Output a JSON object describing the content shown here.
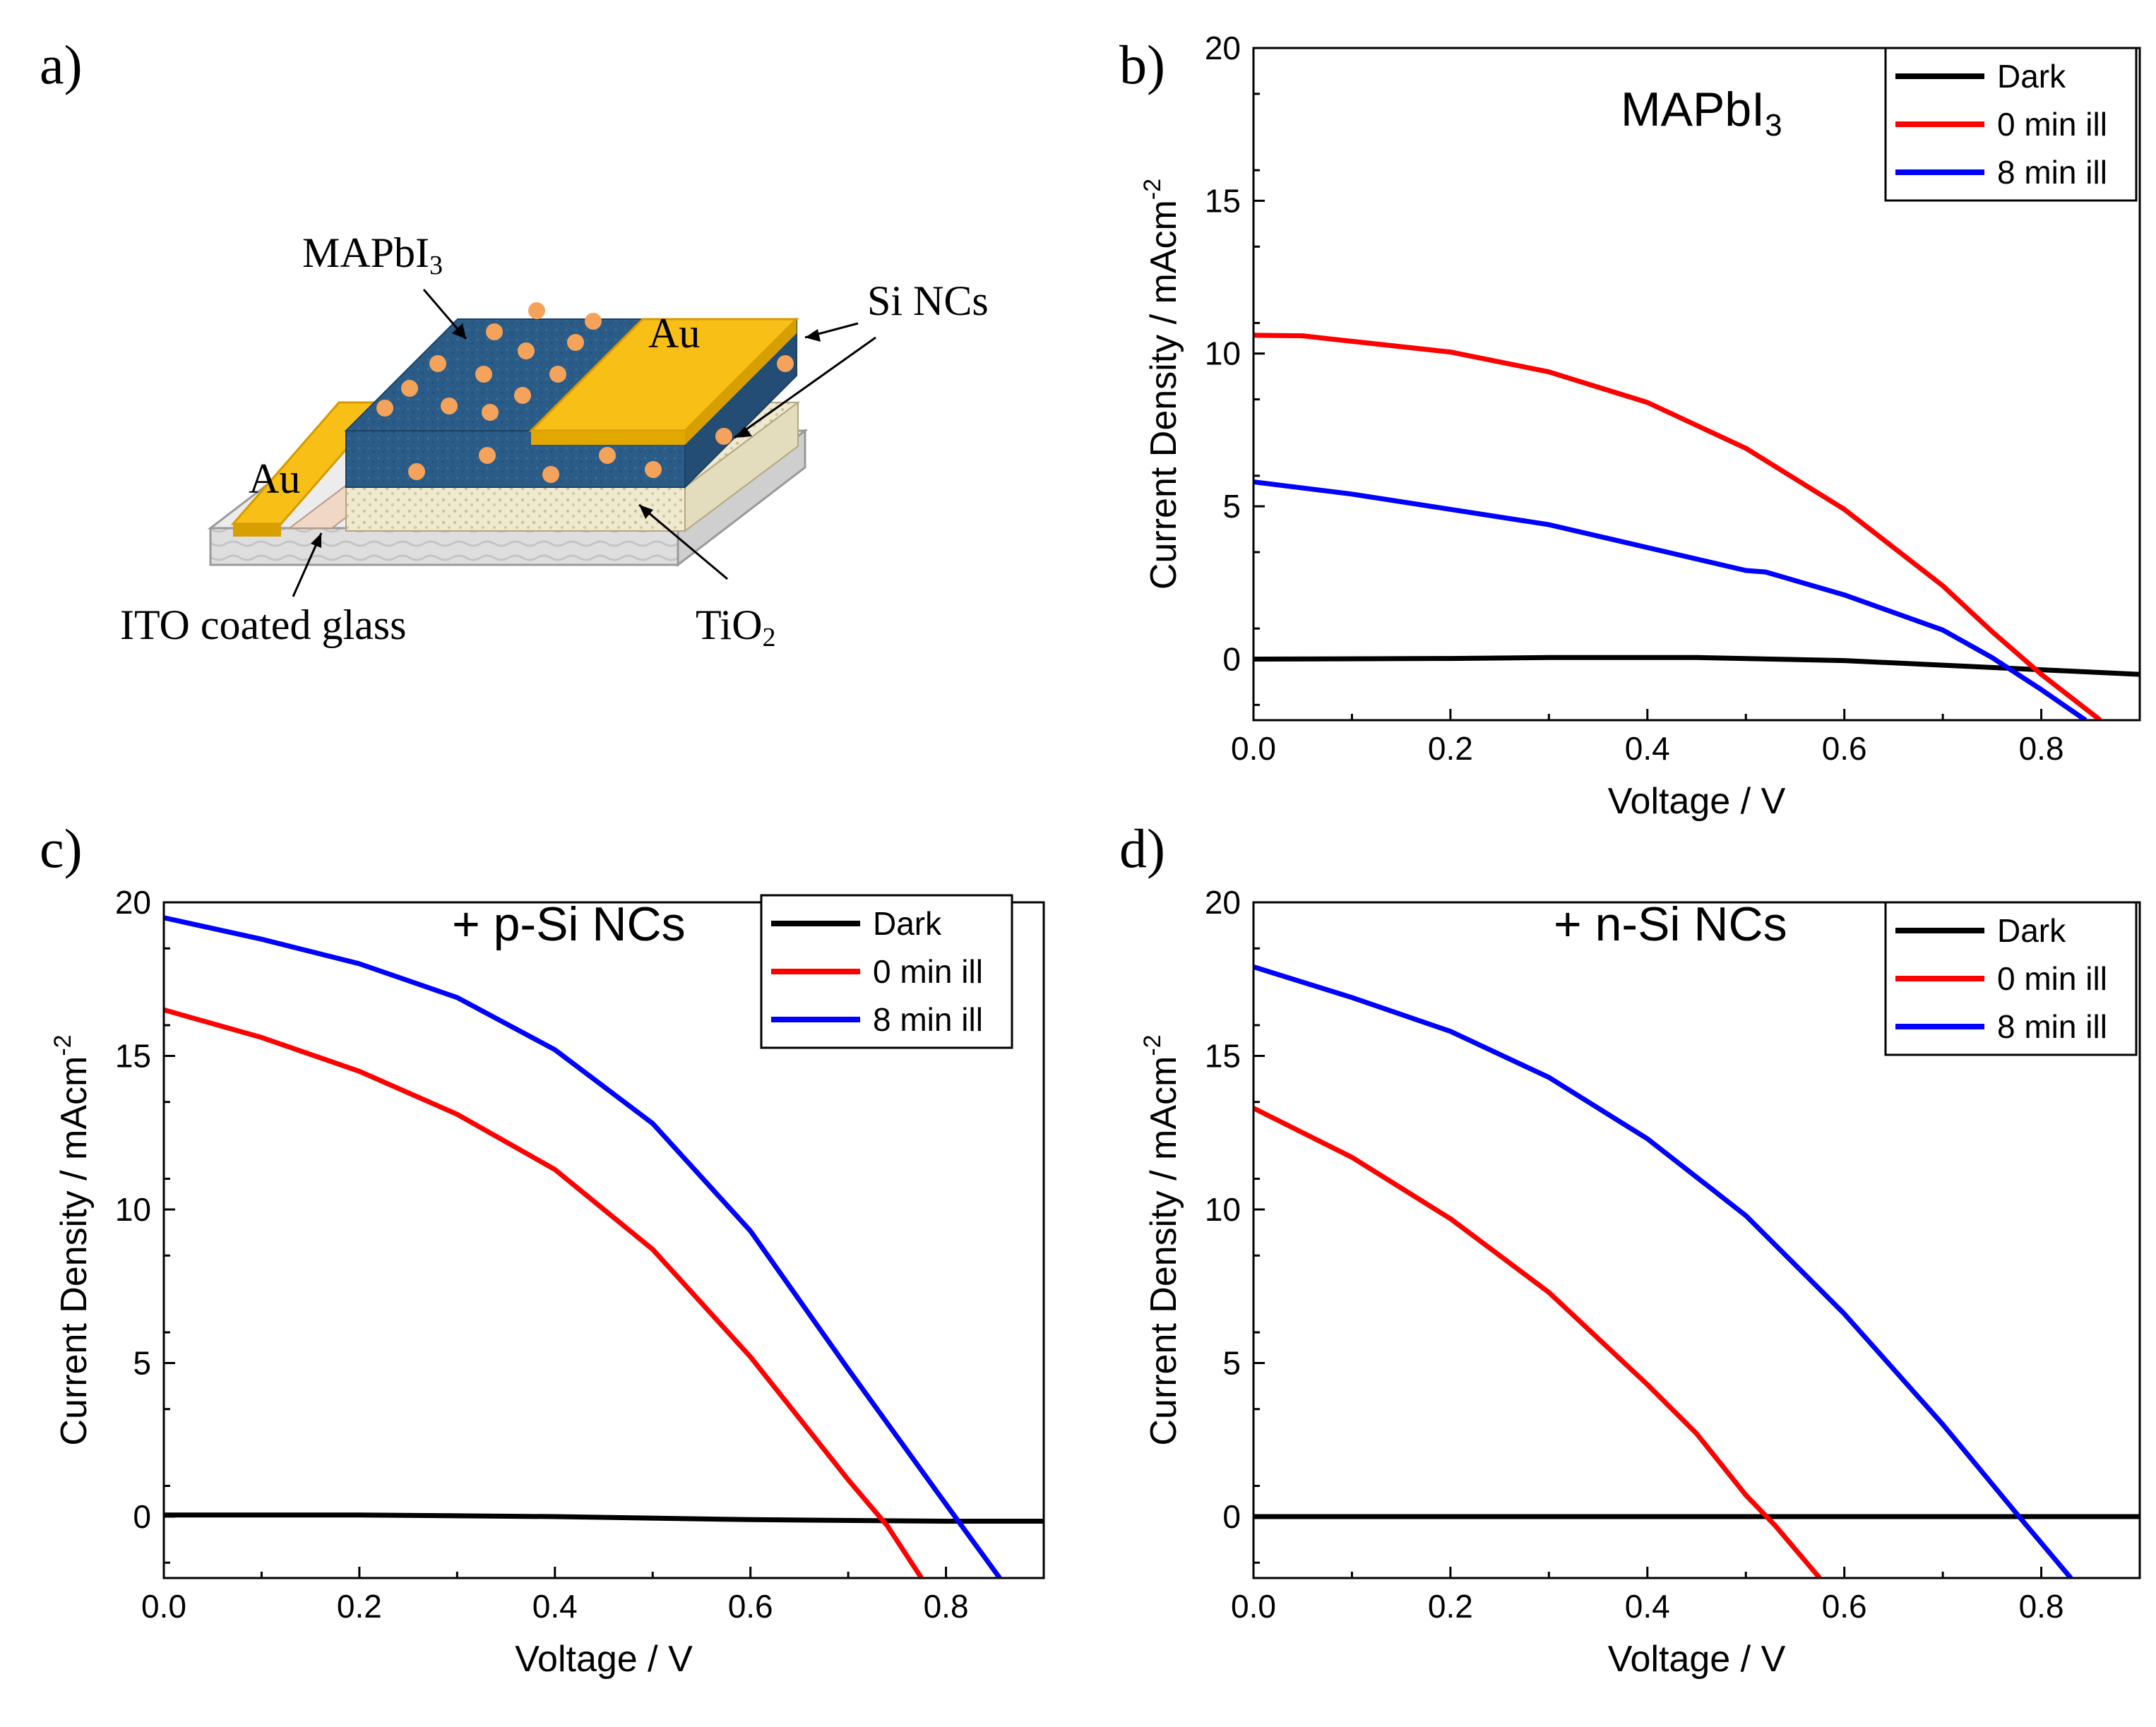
{
  "colors": {
    "dark": "#000000",
    "illum0": "#ff0000",
    "illum8": "#0000ff",
    "perovskite": "#2a5b86",
    "gold": "#f6b800",
    "nc": "#f5a25a"
  },
  "diagram": {
    "panel_letter": "a)",
    "labels": {
      "mapbi3": "MAPbI",
      "mapbi3_sub": "3",
      "au_top": "Au",
      "au_left": "Au",
      "si_ncs": "Si NCs",
      "ito": "ITO coated  glass",
      "tio2": "TiO",
      "tio2_sub": "2"
    }
  },
  "chart_data": [
    {
      "id": "b",
      "panel_letter": "b)",
      "type": "line",
      "title": "MAPbI",
      "title_sub": "3",
      "xlabel": "Voltage / V",
      "ylabel": "Current Density / mAcm",
      "ylabel_sup": "-2",
      "xlim": [
        0,
        0.9
      ],
      "ylim": [
        -2,
        20
      ],
      "xticks": [
        0.0,
        0.2,
        0.4,
        0.6,
        0.8
      ],
      "xtick_labels": [
        "0.0",
        "0.2",
        "0.4",
        "0.6",
        "0.8"
      ],
      "yticks": [
        0,
        5,
        10,
        15,
        20
      ],
      "ytick_labels": [
        "0",
        "5",
        "10",
        "15",
        "20"
      ],
      "legend": [
        "Dark",
        "0 min ill",
        "8 min ill"
      ],
      "series": [
        {
          "name": "Dark",
          "color": "#000000",
          "points": [
            [
              0,
              0
            ],
            [
              0.2,
              0.02
            ],
            [
              0.3,
              0.05
            ],
            [
              0.45,
              0.05
            ],
            [
              0.6,
              -0.05
            ],
            [
              0.7,
              -0.2
            ],
            [
              0.8,
              -0.35
            ],
            [
              0.9,
              -0.5
            ]
          ]
        },
        {
          "name": "0 min ill",
          "color": "#ff0000",
          "points": [
            [
              0,
              10.6
            ],
            [
              0.05,
              10.58
            ],
            [
              0.1,
              10.4
            ],
            [
              0.2,
              10.05
            ],
            [
              0.3,
              9.4
            ],
            [
              0.4,
              8.4
            ],
            [
              0.5,
              6.9
            ],
            [
              0.6,
              4.9
            ],
            [
              0.7,
              2.4
            ],
            [
              0.75,
              0.9
            ],
            [
              0.8,
              -0.5
            ],
            [
              0.86,
              -2.0
            ]
          ]
        },
        {
          "name": "8 min ill",
          "color": "#0000ff",
          "points": [
            [
              0,
              5.8
            ],
            [
              0.1,
              5.4
            ],
            [
              0.2,
              4.9
            ],
            [
              0.3,
              4.4
            ],
            [
              0.4,
              3.65
            ],
            [
              0.5,
              2.9
            ],
            [
              0.52,
              2.85
            ],
            [
              0.6,
              2.1
            ],
            [
              0.7,
              0.95
            ],
            [
              0.75,
              0.05
            ],
            [
              0.8,
              -1.0
            ],
            [
              0.845,
              -2.0
            ]
          ]
        }
      ]
    },
    {
      "id": "c",
      "panel_letter": "c)",
      "type": "line",
      "title": "+ p-Si NCs",
      "xlabel": "Voltage / V",
      "ylabel": "Current Density / mAcm",
      "ylabel_sup": "-2",
      "xlim": [
        0,
        0.9
      ],
      "ylim": [
        -2,
        20
      ],
      "xticks": [
        0.0,
        0.2,
        0.4,
        0.6,
        0.8
      ],
      "xtick_labels": [
        "0.0",
        "0.2",
        "0.4",
        "0.6",
        "0.8"
      ],
      "yticks": [
        0,
        5,
        10,
        15,
        20
      ],
      "ytick_labels": [
        "0",
        "5",
        "10",
        "15",
        "20"
      ],
      "legend": [
        "Dark",
        "0 min ill",
        "8 min ill"
      ],
      "series": [
        {
          "name": "Dark",
          "color": "#000000",
          "points": [
            [
              0,
              0.05
            ],
            [
              0.2,
              0.05
            ],
            [
              0.4,
              0.0
            ],
            [
              0.6,
              -0.1
            ],
            [
              0.8,
              -0.15
            ],
            [
              0.9,
              -0.15
            ]
          ]
        },
        {
          "name": "0 min ill",
          "color": "#ff0000",
          "points": [
            [
              0,
              16.5
            ],
            [
              0.1,
              15.6
            ],
            [
              0.2,
              14.5
            ],
            [
              0.3,
              13.1
            ],
            [
              0.4,
              11.3
            ],
            [
              0.5,
              8.7
            ],
            [
              0.6,
              5.2
            ],
            [
              0.7,
              1.2
            ],
            [
              0.74,
              -0.3
            ],
            [
              0.775,
              -2.0
            ]
          ]
        },
        {
          "name": "8 min ill",
          "color": "#0000ff",
          "points": [
            [
              0,
              19.5
            ],
            [
              0.1,
              18.8
            ],
            [
              0.2,
              18.0
            ],
            [
              0.3,
              16.9
            ],
            [
              0.4,
              15.2
            ],
            [
              0.5,
              12.8
            ],
            [
              0.6,
              9.3
            ],
            [
              0.7,
              4.8
            ],
            [
              0.8,
              0.4
            ],
            [
              0.855,
              -2.0
            ]
          ]
        }
      ]
    },
    {
      "id": "d",
      "panel_letter": "d)",
      "type": "line",
      "title": "+ n-Si NCs",
      "xlabel": "Voltage / V",
      "ylabel": "Current Density / mAcm",
      "ylabel_sup": "-2",
      "xlim": [
        0,
        0.9
      ],
      "ylim": [
        -2,
        20
      ],
      "xticks": [
        0.0,
        0.2,
        0.4,
        0.6,
        0.8
      ],
      "xtick_labels": [
        "0.0",
        "0.2",
        "0.4",
        "0.6",
        "0.8"
      ],
      "yticks": [
        0,
        5,
        10,
        15,
        20
      ],
      "ytick_labels": [
        "0",
        "5",
        "10",
        "15",
        "20"
      ],
      "legend": [
        "Dark",
        "0 min ill",
        "8 min ill"
      ],
      "series": [
        {
          "name": "Dark",
          "color": "#000000",
          "points": [
            [
              0,
              0
            ],
            [
              0.9,
              0
            ]
          ]
        },
        {
          "name": "0 min ill",
          "color": "#ff0000",
          "points": [
            [
              0,
              13.3
            ],
            [
              0.1,
              11.7
            ],
            [
              0.2,
              9.7
            ],
            [
              0.3,
              7.3
            ],
            [
              0.4,
              4.3
            ],
            [
              0.45,
              2.7
            ],
            [
              0.5,
              0.7
            ],
            [
              0.53,
              -0.3
            ],
            [
              0.575,
              -2.0
            ]
          ]
        },
        {
          "name": "8 min ill",
          "color": "#0000ff",
          "points": [
            [
              0,
              17.9
            ],
            [
              0.1,
              16.9
            ],
            [
              0.2,
              15.8
            ],
            [
              0.3,
              14.3
            ],
            [
              0.4,
              12.3
            ],
            [
              0.5,
              9.8
            ],
            [
              0.6,
              6.6
            ],
            [
              0.7,
              3.0
            ],
            [
              0.78,
              -0.1
            ],
            [
              0.83,
              -2.0
            ]
          ]
        }
      ]
    }
  ]
}
